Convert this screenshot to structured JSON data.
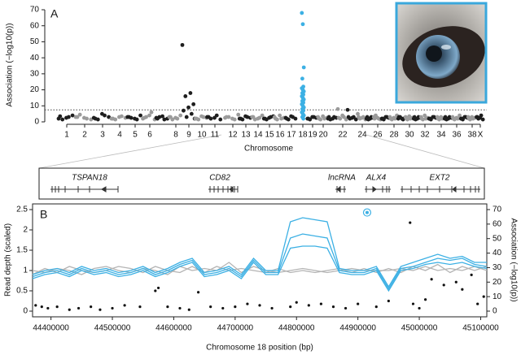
{
  "chart_data": [
    {
      "type": "manhattan",
      "panel": "A",
      "ylabel": "Association (−log10(p))",
      "xlabel": "Chromosome",
      "categories": [
        "1",
        "2",
        "3",
        "4",
        "5",
        "6",
        null,
        "8",
        "9",
        "10",
        "11",
        "12",
        "13",
        "14",
        "15",
        "16",
        "17",
        "18",
        "19",
        "20",
        null,
        "22",
        null,
        "24",
        null,
        "26",
        null,
        "28",
        null,
        "30",
        null,
        "32",
        null,
        "34",
        null,
        "36",
        null,
        "38",
        "X"
      ],
      "values": [
        [
          2,
          3,
          1.5,
          4,
          2.5,
          3.5
        ],
        [
          3,
          2,
          4.5,
          1.5,
          2.5,
          3
        ],
        [
          2.5,
          4,
          1.5,
          3,
          5,
          2
        ],
        [
          2,
          3.5,
          1.5,
          2.5,
          3,
          2
        ],
        [
          3,
          1.5,
          2.5,
          4,
          2,
          3
        ],
        [
          2,
          6,
          3,
          1.5,
          4,
          2.5
        ],
        [
          2.5,
          1.5,
          3,
          2,
          3.5,
          2
        ],
        [
          3,
          2,
          1.5,
          4,
          2.5,
          3
        ],
        [
          48,
          18,
          16,
          11,
          9,
          7,
          5,
          3,
          2
        ],
        [
          2,
          3,
          1.5,
          2.5,
          3.5,
          2
        ],
        [
          3,
          4,
          2,
          1.5,
          2.5,
          3
        ],
        [
          2.5,
          1.5,
          3,
          4.5,
          2,
          3
        ],
        [
          2,
          3,
          1.5,
          2.5,
          3.5,
          2
        ],
        [
          3,
          2.5,
          1.5,
          4,
          2,
          3
        ],
        [
          2,
          3,
          1.5,
          3.5,
          2.5,
          2
        ],
        [
          3,
          2,
          1.5,
          2.5,
          4,
          2
        ],
        [
          2.5,
          3,
          1.5,
          2,
          3.5,
          2
        ],
        [
          68,
          61,
          34,
          27,
          22,
          21,
          20,
          19,
          18,
          17,
          16,
          15,
          14,
          13,
          12,
          11,
          10,
          9,
          8,
          7,
          6,
          5,
          4,
          3,
          2
        ],
        [
          2,
          3,
          1.5,
          2.5,
          3,
          2
        ],
        [
          3,
          2,
          1.5,
          2.5,
          3.5,
          2
        ],
        [
          2,
          3,
          1.5,
          2.5,
          2,
          3
        ],
        [
          8,
          3,
          2,
          1.5,
          4,
          2.5
        ],
        [
          7.5,
          3,
          2,
          1.5,
          2.5,
          3
        ],
        [
          5,
          3,
          2,
          1.5,
          2.5,
          3
        ],
        [
          2,
          3,
          1.5,
          2.5,
          2,
          3
        ],
        [
          3,
          2,
          4,
          1.5,
          2.5,
          2
        ],
        [
          2,
          3,
          1.5,
          2.5,
          3,
          2
        ],
        [
          3,
          2,
          1.5,
          4,
          2.5,
          2
        ],
        [
          2,
          1.5,
          3,
          2.5,
          2,
          3
        ],
        [
          3,
          2,
          1.5,
          2.5,
          3.5,
          2
        ],
        [
          2,
          3,
          1.5,
          2.5,
          2,
          3
        ],
        [
          3,
          2,
          1.5,
          2.5,
          4,
          2
        ],
        [
          2,
          3,
          1.5,
          2.5,
          3,
          2
        ],
        [
          3,
          2,
          1.5,
          2.5,
          3,
          2
        ],
        [
          2,
          3,
          1.5,
          2.5,
          2,
          3
        ],
        [
          3,
          2,
          1.5,
          4,
          2.5,
          2
        ],
        [
          2,
          3,
          1.5,
          2.5,
          3,
          2
        ],
        [
          3,
          2,
          1.5,
          2.5,
          3,
          2
        ],
        [
          3,
          4,
          2,
          1.5,
          2.5,
          3
        ]
      ],
      "colors": [
        "#1e1e1e",
        "#9b9b9b"
      ],
      "highlight_index": 17,
      "highlight_color": "#3cb0e4",
      "threshold": 7.5,
      "ylim": [
        0,
        70
      ],
      "yticks": [
        0,
        10,
        20,
        30,
        40,
        50,
        60,
        70
      ]
    },
    {
      "type": "line",
      "panel": "B",
      "xlabel": "Chromosome 18 position (bp)",
      "ylabel": "Read depth (scaled)",
      "y2label": "Association (−log10(p))",
      "x": [
        44370000,
        44390000,
        44410000,
        44430000,
        44450000,
        44470000,
        44490000,
        44510000,
        44530000,
        44550000,
        44570000,
        44590000,
        44610000,
        44630000,
        44650000,
        44670000,
        44690000,
        44710000,
        44730000,
        44750000,
        44770000,
        44790000,
        44810000,
        44830000,
        44850000,
        44870000,
        44890000,
        44910000,
        44930000,
        44950000,
        44970000,
        44990000,
        45010000,
        45030000,
        45050000,
        45070000,
        45090000,
        45110000
      ],
      "series": [
        {
          "color": "#b4b4b4",
          "values": [
            1.0,
            0.95,
            1.05,
            1.0,
            0.9,
            1.05,
            1.1,
            1.0,
            0.95,
            1.05,
            1.0,
            0.9,
            1.1,
            1.0,
            1.05,
            1.0,
            1.2,
            0.95,
            1.1,
            1.0,
            0.95,
            1.0,
            1.05,
            1.0,
            0.95,
            1.0,
            1.05,
            1.0,
            1.0,
            1.0,
            1.05,
            1.0,
            1.1,
            1.0,
            1.05,
            1.0,
            1.1,
            1.0
          ]
        },
        {
          "color": "#b4b4b4",
          "values": [
            0.9,
            1.05,
            0.95,
            1.1,
            1.0,
            0.95,
            1.0,
            1.1,
            1.05,
            0.95,
            1.1,
            1.0,
            0.95,
            1.1,
            0.95,
            1.1,
            1.0,
            1.05,
            1.0,
            0.95,
            1.05,
            0.95,
            1.0,
            0.95,
            1.0,
            1.05,
            0.95,
            1.05,
            0.95,
            1.05,
            0.95,
            1.1,
            1.0,
            1.15,
            0.95,
            1.1,
            1.0,
            1.1
          ]
        },
        {
          "color": "#3cb0e4",
          "values": [
            0.9,
            1.0,
            1.05,
            0.95,
            1.1,
            1.0,
            1.05,
            0.95,
            1.0,
            1.1,
            0.95,
            1.05,
            1.2,
            1.3,
            0.95,
            1.0,
            1.1,
            0.9,
            1.3,
            1.0,
            1.0,
            2.2,
            2.3,
            2.25,
            2.2,
            1.05,
            1.0,
            1.0,
            1.1,
            0.6,
            1.1,
            1.2,
            1.3,
            1.4,
            1.3,
            1.35,
            1.2,
            1.2
          ]
        },
        {
          "color": "#3cb0e4",
          "values": [
            0.85,
            0.95,
            1.0,
            0.9,
            1.05,
            0.95,
            1.0,
            0.9,
            0.95,
            1.05,
            0.9,
            1.0,
            1.15,
            1.25,
            0.9,
            0.95,
            1.05,
            0.85,
            1.25,
            0.95,
            0.95,
            1.8,
            1.9,
            1.85,
            1.8,
            1.0,
            0.95,
            0.95,
            1.05,
            0.55,
            1.05,
            1.1,
            1.2,
            1.3,
            1.25,
            1.3,
            1.15,
            1.1
          ]
        },
        {
          "color": "#3cb0e4",
          "values": [
            0.8,
            0.9,
            0.95,
            0.85,
            1.0,
            0.9,
            0.95,
            0.85,
            0.9,
            1.0,
            0.85,
            0.95,
            1.1,
            1.2,
            0.85,
            0.9,
            1.0,
            0.8,
            1.2,
            0.9,
            0.9,
            1.55,
            1.6,
            1.6,
            1.55,
            0.95,
            0.9,
            0.9,
            1.0,
            0.5,
            1.0,
            1.05,
            1.15,
            1.2,
            1.15,
            1.2,
            1.1,
            1.05
          ]
        },
        {
          "color": "#111111",
          "axis": "y2",
          "marker": "dot",
          "x": [
            44375000,
            44385000,
            44395000,
            44410000,
            44430000,
            44445000,
            44465000,
            44480000,
            44500000,
            44520000,
            44545000,
            44570000,
            44575000,
            44590000,
            44610000,
            44625000,
            44640000,
            44660000,
            44680000,
            44700000,
            44720000,
            44740000,
            44760000,
            44790000,
            44800000,
            44820000,
            44840000,
            44860000,
            44880000,
            44900000,
            44930000,
            44950000,
            44985000,
            44990000,
            45000000,
            45010000,
            45020000,
            45040000,
            45060000,
            45070000,
            45085000,
            45095000,
            45105000
          ],
          "values": [
            4,
            3,
            2,
            3,
            1,
            2,
            3,
            1,
            2,
            4,
            3,
            14,
            16,
            3,
            2,
            1,
            13,
            3,
            2,
            3,
            5,
            4,
            2,
            3,
            6,
            4,
            5,
            3,
            2,
            5,
            3,
            7,
            61,
            5,
            2,
            8,
            22,
            18,
            20,
            15,
            25,
            5,
            10
          ]
        },
        {
          "color": "#3cb0e4",
          "axis": "y2",
          "marker": "ring",
          "x": [
            44915000
          ],
          "values": [
            68
          ]
        }
      ],
      "xlim": [
        44370000,
        45110000
      ],
      "xticks": [
        44400000,
        44500000,
        44600000,
        44700000,
        44800000,
        44900000,
        45000000,
        45100000
      ],
      "ylim": [
        0,
        2.5
      ],
      "yticks": [
        0,
        0.5,
        1,
        1.5,
        2,
        2.5
      ],
      "y2lim": [
        0,
        70
      ],
      "y2ticks": [
        0,
        10,
        20,
        30,
        40,
        50,
        60,
        70
      ]
    }
  ],
  "gene_track": {
    "genes": [
      "TSPAN18",
      "CD82",
      "lncRNA",
      "ALX4",
      "EXT2"
    ]
  }
}
